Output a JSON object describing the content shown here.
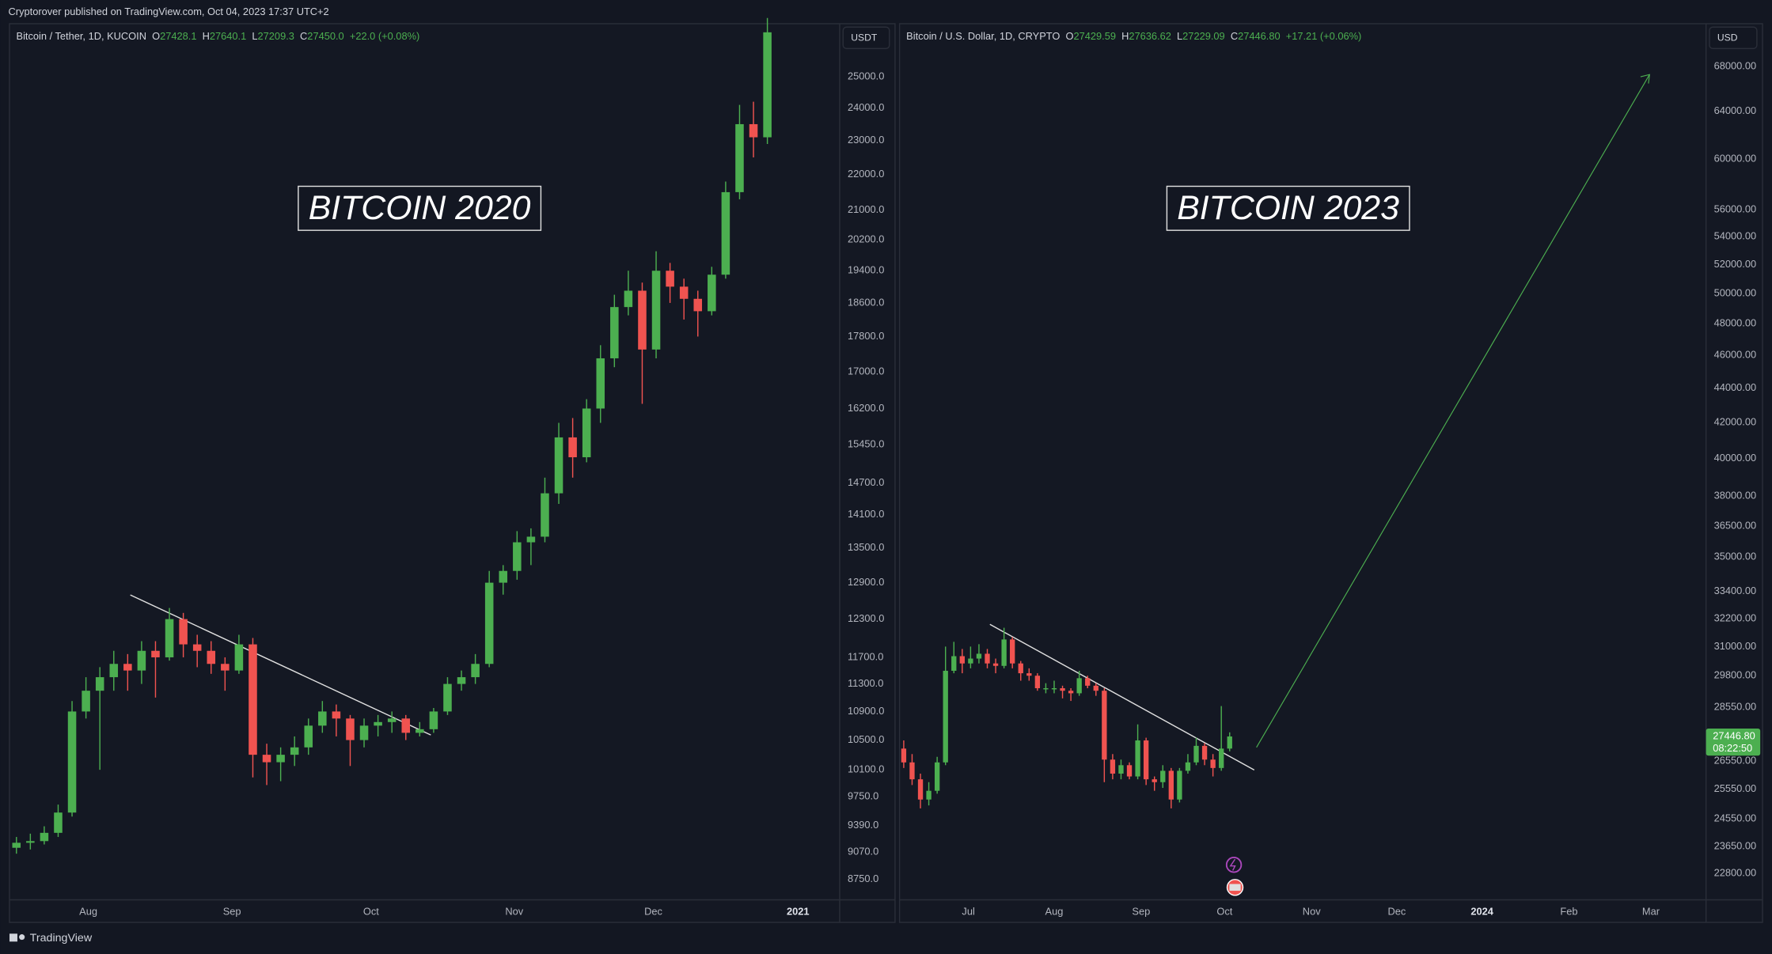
{
  "header": "Cryptorover published on TradingView.com, Oct 04, 2023 17:37 UTC+2",
  "footer": "TradingView",
  "chart_data": [
    {
      "type": "candlestick",
      "title": "BITCOIN 2020",
      "symbol": "Bitcoin / Tether, 1D, KUCOIN",
      "currency": "USDT",
      "ohlc_legend": [
        {
          "label": "O",
          "value": "27428.1"
        },
        {
          "label": "H",
          "value": "27640.1"
        },
        {
          "label": "L",
          "value": "27209.3"
        },
        {
          "label": "C",
          "value": "27450.0"
        }
      ],
      "change": "+22.0 (+0.08%)",
      "up_color": "#4caf50",
      "down_color": "#f05350",
      "log": true,
      "grid": false,
      "ylim": [
        8520,
        26760
      ],
      "yticks": [
        {
          "value": 25000,
          "label": "25000.0"
        },
        {
          "value": 24000,
          "label": "24000.0"
        },
        {
          "value": 23000,
          "label": "23000.0"
        },
        {
          "value": 22000,
          "label": "22000.0"
        },
        {
          "value": 21000,
          "label": "21000.0"
        },
        {
          "value": 20200,
          "label": "20200.0"
        },
        {
          "value": 19400,
          "label": "19400.0"
        },
        {
          "value": 18600,
          "label": "18600.0"
        },
        {
          "value": 17800,
          "label": "17800.0"
        },
        {
          "value": 17000,
          "label": "17000.0"
        },
        {
          "value": 16200,
          "label": "16200.0"
        },
        {
          "value": 15450,
          "label": "15450.0"
        },
        {
          "value": 14700,
          "label": "14700.0"
        },
        {
          "value": 14100,
          "label": "14100.0"
        },
        {
          "value": 13500,
          "label": "13500.0"
        },
        {
          "value": 12900,
          "label": "12900.0"
        },
        {
          "value": 12300,
          "label": "12300.0"
        },
        {
          "value": 11700,
          "label": "11700.0"
        },
        {
          "value": 11300,
          "label": "11300.0"
        },
        {
          "value": 10900,
          "label": "10900.0"
        },
        {
          "value": 10500,
          "label": "10500.0"
        },
        {
          "value": 10100,
          "label": "10100.0"
        },
        {
          "value": 9750,
          "label": "9750.0"
        },
        {
          "value": 9390,
          "label": "9390.0"
        },
        {
          "value": 9070,
          "label": "9070.0"
        },
        {
          "value": 8750,
          "label": "8750.0"
        }
      ],
      "xlim": [
        0,
        59.7
      ],
      "xticks": [
        {
          "value": 5.67,
          "label": "Aug"
        },
        {
          "value": 16,
          "label": "Sep"
        },
        {
          "value": 26,
          "label": "Oct"
        },
        {
          "value": 36.3,
          "label": "Nov"
        },
        {
          "value": 46.3,
          "label": "Dec"
        },
        {
          "value": 56.7,
          "label": "2021"
        }
      ],
      "ohlc": [
        [
          9120,
          9250,
          9050,
          9180
        ],
        [
          9180,
          9290,
          9100,
          9200
        ],
        [
          9200,
          9380,
          9160,
          9300
        ],
        [
          9300,
          9650,
          9250,
          9550
        ],
        [
          9550,
          11050,
          9500,
          10900
        ],
        [
          10900,
          11400,
          10800,
          11200
        ],
        [
          11200,
          11550,
          10100,
          11400
        ],
        [
          11400,
          11800,
          11200,
          11600
        ],
        [
          11600,
          11750,
          11200,
          11500
        ],
        [
          11500,
          11950,
          11300,
          11800
        ],
        [
          11800,
          11950,
          11100,
          11700
        ],
        [
          11700,
          12480,
          11650,
          12300
        ],
        [
          12300,
          12400,
          11700,
          11900
        ],
        [
          11900,
          12050,
          11550,
          11800
        ],
        [
          11800,
          11950,
          11450,
          11600
        ],
        [
          11600,
          11700,
          11200,
          11500
        ],
        [
          11500,
          12050,
          11450,
          11900
        ],
        [
          11900,
          12000,
          10000,
          10300
        ],
        [
          10300,
          10450,
          9900,
          10200
        ],
        [
          10200,
          10400,
          9950,
          10300
        ],
        [
          10300,
          10550,
          10150,
          10400
        ],
        [
          10400,
          10800,
          10300,
          10700
        ],
        [
          10700,
          11050,
          10600,
          10900
        ],
        [
          10900,
          11000,
          10550,
          10800
        ],
        [
          10800,
          10850,
          10150,
          10500
        ],
        [
          10500,
          10800,
          10400,
          10700
        ],
        [
          10700,
          10850,
          10550,
          10750
        ],
        [
          10750,
          10900,
          10600,
          10800
        ],
        [
          10800,
          10850,
          10500,
          10600
        ],
        [
          10600,
          10750,
          10550,
          10650
        ],
        [
          10650,
          10950,
          10600,
          10900
        ],
        [
          10900,
          11400,
          10850,
          11300
        ],
        [
          11300,
          11500,
          11200,
          11400
        ],
        [
          11400,
          11750,
          11300,
          11600
        ],
        [
          11600,
          13100,
          11550,
          12900
        ],
        [
          12900,
          13200,
          12700,
          13100
        ],
        [
          13100,
          13800,
          12950,
          13600
        ],
        [
          13600,
          13850,
          13200,
          13700
        ],
        [
          13700,
          14800,
          13600,
          14500
        ],
        [
          14500,
          15900,
          14300,
          15600
        ],
        [
          15600,
          16000,
          14800,
          15200
        ],
        [
          15200,
          16400,
          15100,
          16200
        ],
        [
          16200,
          17600,
          15900,
          17300
        ],
        [
          17300,
          18800,
          17100,
          18500
        ],
        [
          18500,
          19400,
          18300,
          18900
        ],
        [
          18900,
          19100,
          16300,
          17500
        ],
        [
          17500,
          19900,
          17300,
          19400
        ],
        [
          19400,
          19600,
          18600,
          19000
        ],
        [
          19000,
          19200,
          18200,
          18700
        ],
        [
          18700,
          18900,
          17800,
          18400
        ],
        [
          18400,
          19500,
          18300,
          19300
        ],
        [
          19300,
          21800,
          19200,
          21500
        ],
        [
          21500,
          24100,
          21300,
          23500
        ],
        [
          23500,
          24200,
          22500,
          23100
        ],
        [
          23100,
          27000,
          22900,
          26500
        ]
      ]
    },
    {
      "type": "candlestick",
      "title": "BITCOIN 2023",
      "symbol": "Bitcoin / U.S. Dollar, 1D, CRYPTO",
      "currency": "USD",
      "ohlc_legend": [
        {
          "label": "O",
          "value": "27429.59"
        },
        {
          "label": "H",
          "value": "27636.62"
        },
        {
          "label": "L",
          "value": "27229.09"
        },
        {
          "label": "C",
          "value": "27446.80"
        }
      ],
      "change": "+17.21 (+0.06%)",
      "up_color": "#4caf50",
      "down_color": "#f05350",
      "log": true,
      "grid": false,
      "last_price": {
        "value": 27446.8,
        "label": "27446.80"
      },
      "countdown": "08:22:50",
      "ylim": [
        22000,
        71950
      ],
      "yticks": [
        {
          "value": 68000,
          "label": "68000.00"
        },
        {
          "value": 64000,
          "label": "64000.00"
        },
        {
          "value": 60000,
          "label": "60000.00"
        },
        {
          "value": 56000,
          "label": "56000.00"
        },
        {
          "value": 54000,
          "label": "54000.00"
        },
        {
          "value": 52000,
          "label": "52000.00"
        },
        {
          "value": 50000,
          "label": "50000.00"
        },
        {
          "value": 48000,
          "label": "48000.00"
        },
        {
          "value": 46000,
          "label": "46000.00"
        },
        {
          "value": 44000,
          "label": "44000.00"
        },
        {
          "value": 42000,
          "label": "42000.00"
        },
        {
          "value": 40000,
          "label": "40000.00"
        },
        {
          "value": 38000,
          "label": "38000.00"
        },
        {
          "value": 36500,
          "label": "36500.00"
        },
        {
          "value": 35000,
          "label": "35000.00"
        },
        {
          "value": 33400,
          "label": "33400.00"
        },
        {
          "value": 32200,
          "label": "32200.00"
        },
        {
          "value": 31000,
          "label": "31000.00"
        },
        {
          "value": 29800,
          "label": "29800.00"
        },
        {
          "value": 28550,
          "label": "28550.00"
        },
        {
          "value": 26550,
          "label": "26550.00"
        },
        {
          "value": 25550,
          "label": "25550.00"
        },
        {
          "value": 24550,
          "label": "24550.00"
        },
        {
          "value": 23650,
          "label": "23650.00"
        },
        {
          "value": 22800,
          "label": "22800.00"
        }
      ],
      "xlim": [
        0,
        96.5
      ],
      "xticks": [
        {
          "value": 8.24,
          "label": "Jul"
        },
        {
          "value": 18.5,
          "label": "Aug"
        },
        {
          "value": 28.9,
          "label": "Sep"
        },
        {
          "value": 38.9,
          "label": "Oct"
        },
        {
          "value": 49.3,
          "label": "Nov"
        },
        {
          "value": 59.5,
          "label": "Dec"
        },
        {
          "value": 69.7,
          "label": "2024"
        },
        {
          "value": 80.1,
          "label": "Feb"
        },
        {
          "value": 89.9,
          "label": "Mar"
        }
      ],
      "ohlc": [
        [
          27000,
          27300,
          26300,
          26500
        ],
        [
          26500,
          26800,
          25700,
          25900
        ],
        [
          25900,
          26100,
          24900,
          25200
        ],
        [
          25200,
          25800,
          25000,
          25500
        ],
        [
          25500,
          26700,
          25400,
          26500
        ],
        [
          26500,
          31000,
          26400,
          30000
        ],
        [
          30000,
          31200,
          29900,
          30600
        ],
        [
          30600,
          30900,
          29900,
          30300
        ],
        [
          30300,
          31000,
          30100,
          30500
        ],
        [
          30500,
          31100,
          30300,
          30700
        ],
        [
          30700,
          30900,
          30100,
          30300
        ],
        [
          30300,
          30500,
          29900,
          30200
        ],
        [
          30200,
          31800,
          30100,
          31300
        ],
        [
          31300,
          31400,
          30100,
          30300
        ],
        [
          30300,
          30400,
          29600,
          29900
        ],
        [
          29900,
          30100,
          29600,
          29800
        ],
        [
          29800,
          29900,
          29200,
          29300
        ],
        [
          29300,
          29500,
          29100,
          29300
        ],
        [
          29300,
          29600,
          29100,
          29300
        ],
        [
          29300,
          29400,
          28900,
          29200
        ],
        [
          29200,
          29300,
          28800,
          29100
        ],
        [
          29100,
          30000,
          29000,
          29700
        ],
        [
          29700,
          29800,
          29300,
          29400
        ],
        [
          29400,
          29500,
          29000,
          29200
        ],
        [
          29200,
          29300,
          25800,
          26600
        ],
        [
          26600,
          26800,
          25900,
          26100
        ],
        [
          26100,
          26600,
          25900,
          26400
        ],
        [
          26400,
          26500,
          25900,
          26000
        ],
        [
          26000,
          27900,
          25900,
          27300
        ],
        [
          27300,
          27400,
          25700,
          25900
        ],
        [
          25900,
          26000,
          25500,
          25800
        ],
        [
          25800,
          26400,
          25600,
          26200
        ],
        [
          26200,
          26300,
          24900,
          25200
        ],
        [
          25200,
          26300,
          25100,
          26200
        ],
        [
          26200,
          26800,
          26100,
          26500
        ],
        [
          26500,
          27400,
          26400,
          27100
        ],
        [
          27100,
          27200,
          26400,
          26600
        ],
        [
          26600,
          26800,
          26000,
          26300
        ],
        [
          26300,
          28600,
          26200,
          27000
        ],
        [
          27000,
          27600,
          26900,
          27446.8
        ]
      ]
    }
  ]
}
